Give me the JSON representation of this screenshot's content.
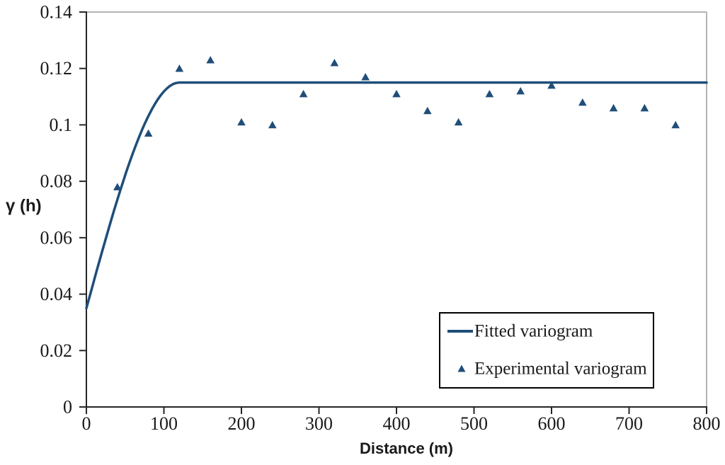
{
  "figure": {
    "background": "#ffffff",
    "series_color": "#1F4E79",
    "axis_color": "#262626",
    "border_color": "#9a9a9a",
    "text_color": "#1a1a1a"
  },
  "chart_data": {
    "type": "line+scatter",
    "title": "",
    "xlabel": "Distance (m)",
    "ylabel": "γ (h)",
    "xlim": [
      0,
      800
    ],
    "ylim": [
      0,
      0.14
    ],
    "x_ticks": [
      0,
      100,
      200,
      300,
      400,
      500,
      600,
      700,
      800
    ],
    "x_tick_labels": [
      "0",
      "100",
      "200",
      "300",
      "400",
      "500",
      "600",
      "700",
      "800"
    ],
    "y_ticks": [
      0,
      0.02,
      0.04,
      0.06,
      0.08,
      0.1,
      0.12,
      0.14
    ],
    "y_tick_labels": [
      "0",
      "0.02",
      "0.04",
      "0.06",
      "0.08",
      "0.1",
      "0.12",
      "0.14"
    ],
    "grid": false,
    "legend_position": "lower right",
    "series": [
      {
        "name": "Fitted variogram",
        "type": "line",
        "model": "spherical",
        "nugget": 0.035,
        "sill": 0.115,
        "range": 120,
        "color": "#1F4E79",
        "line_width": 3.5
      },
      {
        "name": "Experimental variogram",
        "type": "scatter",
        "marker": "triangle-up",
        "color": "#1F4E79",
        "x": [
          40,
          80,
          120,
          160,
          200,
          240,
          280,
          320,
          360,
          400,
          440,
          480,
          520,
          560,
          600,
          640,
          680,
          720,
          760
        ],
        "y": [
          0.078,
          0.097,
          0.12,
          0.123,
          0.101,
          0.1,
          0.111,
          0.122,
          0.117,
          0.111,
          0.105,
          0.101,
          0.111,
          0.112,
          0.114,
          0.108,
          0.106,
          0.106,
          0.1
        ]
      }
    ]
  }
}
